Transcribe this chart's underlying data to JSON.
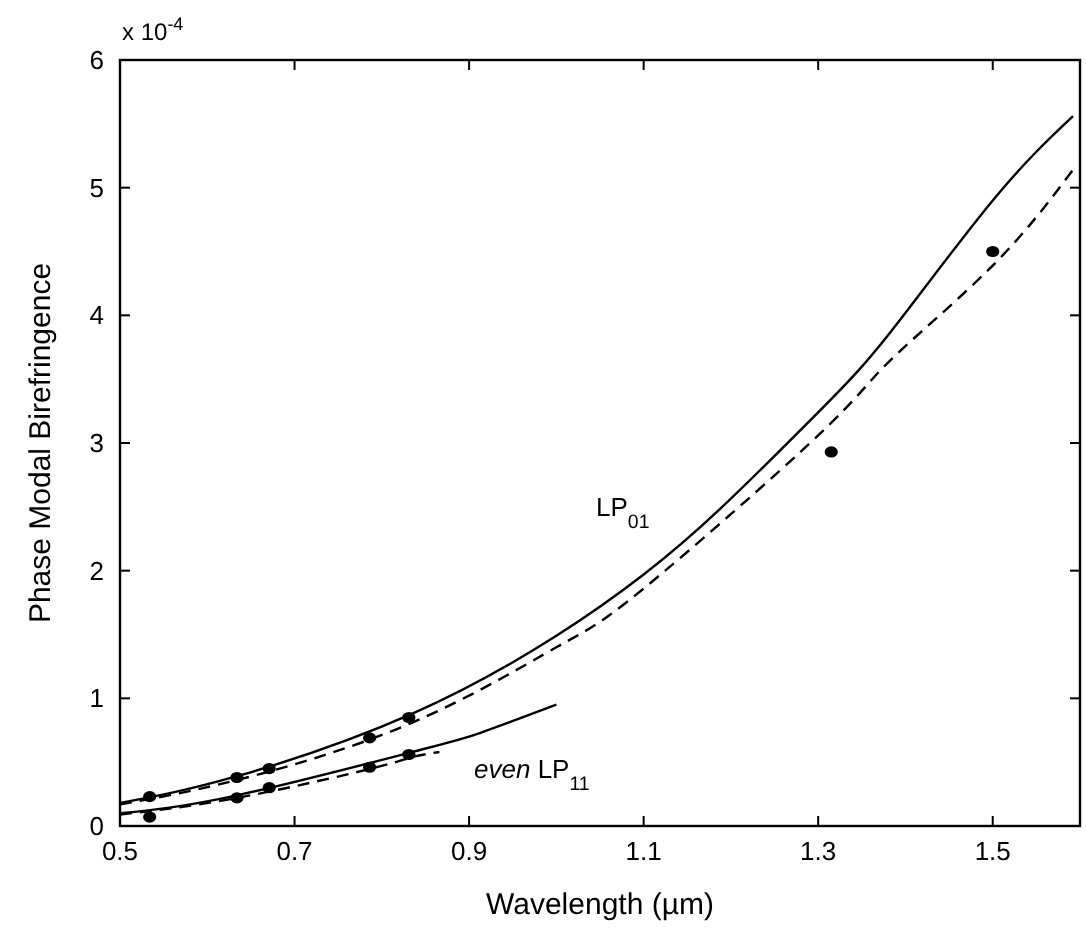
{
  "chart_data": {
    "type": "line",
    "xlabel": "Wavelength (µm)",
    "ylabel": "Phase Modal Birefringence",
    "xlim": [
      0.5,
      1.6
    ],
    "ylim": [
      0,
      6
    ],
    "xticks": [
      0.5,
      0.7,
      0.9,
      1.1,
      1.3,
      1.5
    ],
    "yticks": [
      0,
      1,
      2,
      3,
      4,
      5,
      6
    ],
    "grid": false,
    "annotations": [
      "x 10$^{-4}$",
      "LP$_{01}$",
      "even LP$_{11}$"
    ],
    "series": [
      {
        "color": "#000000",
        "line_style": "solid",
        "marker": "none",
        "x": [
          0.5,
          0.634,
          0.835,
          1.0,
          1.1,
          1.187,
          1.3,
          1.383,
          1.5,
          1.592
        ],
        "values": [
          0.18,
          0.39,
          0.88,
          1.49,
          1.97,
          2.48,
          3.24,
          3.87,
          4.9,
          5.56
        ]
      },
      {
        "color": "#000000",
        "line_style": "dashed",
        "marker": "none",
        "x": [
          0.5,
          0.634,
          0.835,
          1.0,
          1.1,
          1.3,
          1.383,
          1.5,
          1.592
        ],
        "values": [
          0.17,
          0.36,
          0.81,
          1.4,
          1.86,
          3.06,
          3.65,
          4.39,
          5.14
        ]
      },
      {
        "color": "#000000",
        "line_style": "solid",
        "marker": "none",
        "x": [
          0.5,
          0.634,
          0.835,
          0.913,
          1.0
        ],
        "values": [
          0.1,
          0.24,
          0.58,
          0.73,
          0.95
        ]
      },
      {
        "color": "#000000",
        "line_style": "dashed",
        "marker": "none",
        "x": [
          0.5,
          0.634,
          0.788,
          0.835,
          0.866
        ],
        "values": [
          0.09,
          0.22,
          0.45,
          0.54,
          0.58
        ]
      },
      {
        "type": "scatter",
        "color": "#000000",
        "marker": "circle",
        "x": [
          0.534,
          0.634,
          0.671,
          0.786,
          0.831,
          1.315,
          1.5
        ],
        "values": [
          0.23,
          0.38,
          0.45,
          0.69,
          0.85,
          2.93,
          4.5
        ]
      },
      {
        "type": "scatter",
        "color": "#000000",
        "marker": "circle",
        "x": [
          0.534,
          0.634,
          0.671,
          0.786,
          0.831
        ],
        "values": [
          0.07,
          0.22,
          0.3,
          0.46,
          0.56
        ]
      }
    ]
  }
}
